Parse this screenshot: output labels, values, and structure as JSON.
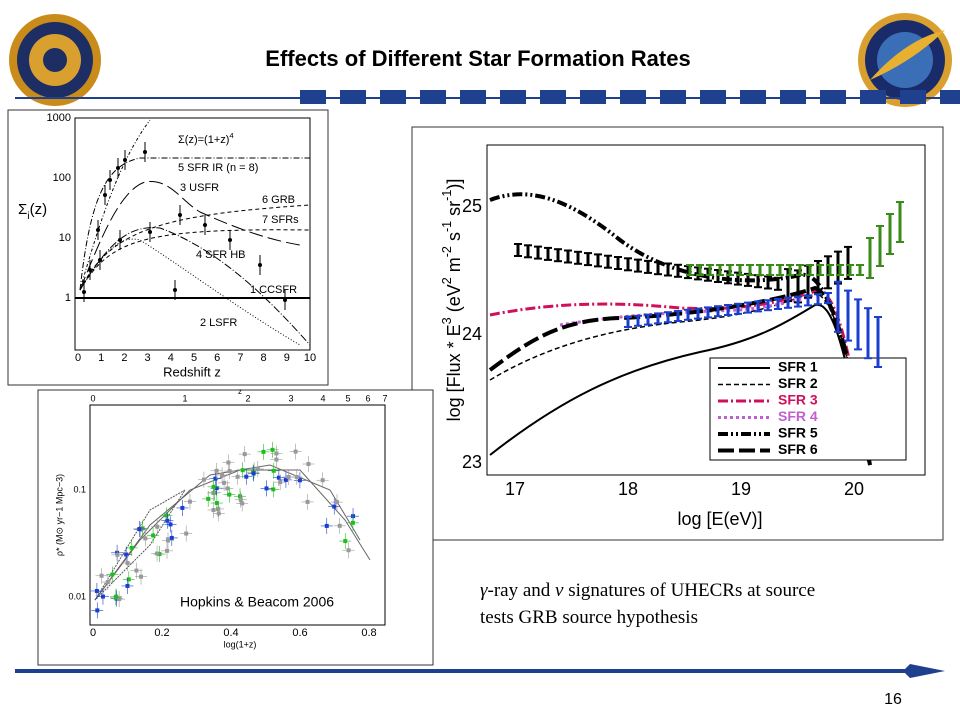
{
  "header": {
    "title": "Effects of Different Star Formation Rates"
  },
  "figures": [
    {
      "y_label": [
        "Σ",
        "i",
        "(z)"
      ],
      "x_label": "Redshift z",
      "yticks": [
        "1",
        "10",
        "100",
        "1000"
      ],
      "xticks": [
        "0",
        "1",
        "2",
        "3",
        "4",
        "5",
        "6",
        "7",
        "8",
        "9",
        "10"
      ],
      "annotations": [
        [
          "Σ(z)=(1+z)",
          "4"
        ],
        [
          "5 SFR IR (n = 8)"
        ],
        [
          "3 USFR"
        ],
        [
          "6 GRB"
        ],
        [
          "7 SFRs"
        ],
        [
          "4 SFR HB"
        ],
        [
          "1 CCSFR"
        ],
        [
          "2 LSFR"
        ]
      ]
    },
    {
      "credit": "Hopkins & Beacom 2006",
      "x_label": "log(1+z)",
      "top_label": "z",
      "y_label": "ρ* (M⊙ yr−1 Mpc−3)",
      "xticks": [
        "0",
        "0.2",
        "0.4",
        "0.6",
        "0.8"
      ],
      "top_ticks": [
        "0",
        "1",
        "2",
        "3",
        "4",
        "5",
        "6",
        "7"
      ],
      "yticks": [
        "0.01",
        "0.1"
      ]
    },
    {
      "y_label": [
        "log [Flux * E",
        "3",
        " (eV",
        "2",
        " m",
        "-2",
        " s",
        "-1",
        " sr",
        "-1",
        ")]"
      ],
      "x_label": "log [E(eV)]",
      "yticks": [
        "23",
        "24",
        "25"
      ],
      "xticks": [
        "17",
        "18",
        "19",
        "20"
      ],
      "legend": [
        "SFR 1",
        "SFR 2",
        "SFR 3",
        "SFR 4",
        "SFR 5",
        "SFR 6"
      ]
    }
  ],
  "caption": [
    [
      "γ",
      "-ray and ",
      "ν",
      " signatures of UHECRs at source"
    ],
    [
      "tests GRB source hypothesis"
    ]
  ],
  "page_number": "16"
}
